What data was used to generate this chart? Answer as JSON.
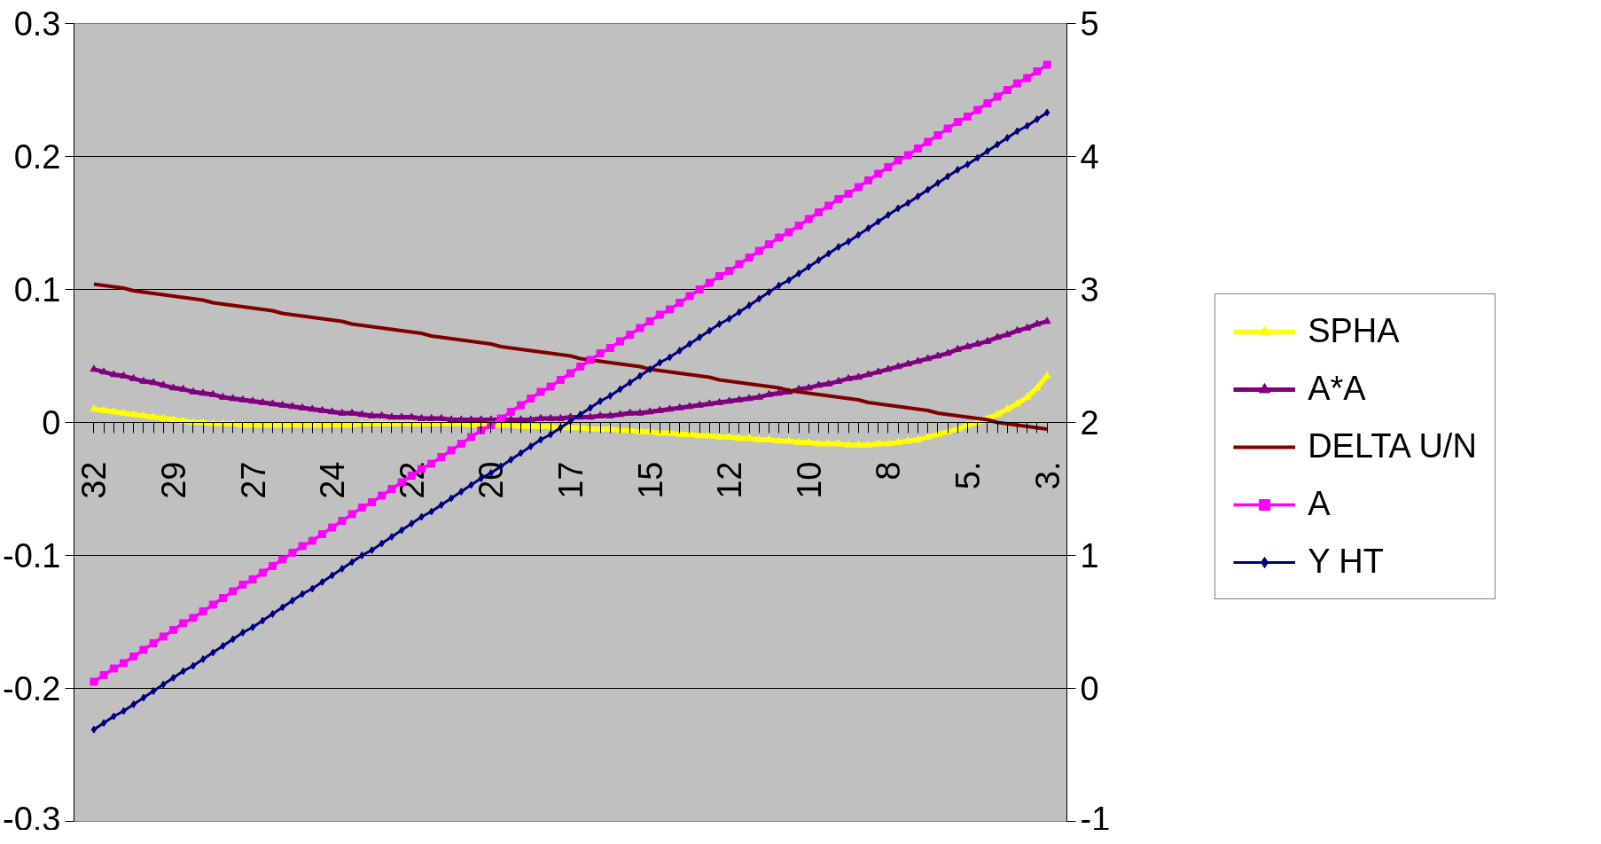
{
  "chart_data": {
    "type": "line",
    "categories": [
      "32",
      null,
      null,
      null,
      null,
      null,
      null,
      null,
      "29",
      null,
      null,
      null,
      null,
      null,
      null,
      null,
      "27",
      null,
      null,
      null,
      null,
      null,
      null,
      null,
      "24",
      null,
      null,
      null,
      null,
      null,
      null,
      null,
      "22",
      null,
      null,
      null,
      null,
      null,
      null,
      null,
      "20",
      null,
      null,
      null,
      null,
      null,
      null,
      null,
      "17",
      null,
      null,
      null,
      null,
      null,
      null,
      null,
      "15",
      null,
      null,
      null,
      null,
      null,
      null,
      null,
      "12",
      null,
      null,
      null,
      null,
      null,
      null,
      null,
      "10",
      null,
      null,
      null,
      null,
      null,
      null,
      null,
      "8",
      null,
      null,
      null,
      null,
      null,
      null,
      null,
      "5.",
      null,
      null,
      null,
      null,
      null,
      null,
      null,
      "3."
    ],
    "ylim": [
      -0.3,
      0.3
    ],
    "yticks": [
      -0.3,
      -0.2,
      -0.1,
      0,
      0.1,
      0.2,
      0.3
    ],
    "y2lim": [
      -1,
      5
    ],
    "y2ticks": [
      -1,
      0,
      1,
      2,
      3,
      4,
      5
    ],
    "grid": "y",
    "legend": "right",
    "line_style": "solid",
    "series": [
      {
        "name": "SPHA",
        "color": "#ffff00",
        "marker": "triangle",
        "values": [
          0.01,
          0.009,
          0.008,
          0.007,
          0.006,
          0.005,
          0.004,
          0.003,
          0.002,
          0.001,
          0.0,
          0.0,
          -0.001,
          -0.001,
          -0.001,
          -0.002,
          -0.002,
          -0.002,
          -0.002,
          -0.002,
          -0.002,
          -0.002,
          -0.002,
          -0.002,
          -0.002,
          -0.002,
          -0.002,
          -0.001,
          -0.001,
          -0.001,
          -0.001,
          -0.001,
          -0.001,
          -0.001,
          -0.001,
          -0.001,
          -0.001,
          -0.001,
          -0.002,
          -0.002,
          -0.002,
          -0.002,
          -0.002,
          -0.003,
          -0.003,
          -0.003,
          -0.003,
          -0.004,
          -0.004,
          -0.004,
          -0.005,
          -0.005,
          -0.005,
          -0.006,
          -0.006,
          -0.007,
          -0.007,
          -0.008,
          -0.008,
          -0.009,
          -0.009,
          -0.01,
          -0.01,
          -0.011,
          -0.011,
          -0.012,
          -0.012,
          -0.013,
          -0.013,
          -0.014,
          -0.014,
          -0.015,
          -0.015,
          -0.016,
          -0.016,
          -0.016,
          -0.017,
          -0.017,
          -0.017,
          -0.016,
          -0.016,
          -0.015,
          -0.014,
          -0.013,
          -0.011,
          -0.009,
          -0.007,
          -0.005,
          -0.002,
          0.0,
          0.003,
          0.006,
          0.01,
          0.014,
          0.019,
          0.026,
          0.035
        ]
      },
      {
        "name": "A*A",
        "color": "#800080",
        "marker": "triangle",
        "values": [
          0.04,
          0.038,
          0.036,
          0.035,
          0.033,
          0.031,
          0.03,
          0.028,
          0.026,
          0.025,
          0.023,
          0.022,
          0.021,
          0.019,
          0.018,
          0.017,
          0.016,
          0.015,
          0.014,
          0.013,
          0.012,
          0.011,
          0.01,
          0.009,
          0.008,
          0.007,
          0.007,
          0.006,
          0.005,
          0.005,
          0.004,
          0.004,
          0.004,
          0.003,
          0.003,
          0.003,
          0.002,
          0.002,
          0.002,
          0.002,
          0.002,
          0.002,
          0.002,
          0.002,
          0.002,
          0.003,
          0.003,
          0.003,
          0.004,
          0.004,
          0.004,
          0.005,
          0.005,
          0.006,
          0.007,
          0.007,
          0.008,
          0.009,
          0.01,
          0.011,
          0.012,
          0.013,
          0.014,
          0.015,
          0.016,
          0.017,
          0.018,
          0.019,
          0.021,
          0.022,
          0.023,
          0.025,
          0.026,
          0.028,
          0.029,
          0.031,
          0.033,
          0.034,
          0.036,
          0.038,
          0.04,
          0.042,
          0.044,
          0.046,
          0.048,
          0.05,
          0.052,
          0.055,
          0.057,
          0.059,
          0.061,
          0.064,
          0.066,
          0.069,
          0.071,
          0.074,
          0.076
        ]
      },
      {
        "name": "DELTA U/N",
        "color": "#800000",
        "values": [
          0.104,
          0.103,
          0.102,
          0.101,
          0.099,
          0.098,
          0.097,
          0.096,
          0.095,
          0.094,
          0.093,
          0.092,
          0.09,
          0.089,
          0.088,
          0.087,
          0.086,
          0.085,
          0.084,
          0.082,
          0.081,
          0.08,
          0.079,
          0.078,
          0.077,
          0.076,
          0.074,
          0.073,
          0.072,
          0.071,
          0.07,
          0.069,
          0.068,
          0.067,
          0.065,
          0.064,
          0.063,
          0.062,
          0.061,
          0.06,
          0.059,
          0.057,
          0.056,
          0.055,
          0.054,
          0.053,
          0.052,
          0.051,
          0.05,
          0.048,
          0.047,
          0.046,
          0.045,
          0.044,
          0.043,
          0.042,
          0.04,
          0.039,
          0.038,
          0.037,
          0.036,
          0.035,
          0.034,
          0.032,
          0.031,
          0.03,
          0.029,
          0.028,
          0.027,
          0.026,
          0.024,
          0.023,
          0.022,
          0.021,
          0.02,
          0.019,
          0.018,
          0.017,
          0.015,
          0.014,
          0.013,
          0.012,
          0.011,
          0.01,
          0.009,
          0.007,
          0.006,
          0.005,
          0.004,
          0.003,
          0.002,
          0.0,
          -0.001,
          -0.002,
          -0.003,
          -0.004,
          -0.005
        ]
      },
      {
        "name": "A",
        "color": "#ff00ff",
        "marker": "square",
        "axis": "y2",
        "values": [
          0.05,
          0.1,
          0.15,
          0.19,
          0.24,
          0.29,
          0.34,
          0.39,
          0.44,
          0.49,
          0.53,
          0.58,
          0.63,
          0.68,
          0.73,
          0.78,
          0.82,
          0.87,
          0.92,
          0.97,
          1.02,
          1.07,
          1.11,
          1.16,
          1.21,
          1.26,
          1.31,
          1.36,
          1.4,
          1.45,
          1.5,
          1.55,
          1.6,
          1.65,
          1.69,
          1.74,
          1.79,
          1.84,
          1.89,
          1.94,
          1.98,
          2.03,
          2.08,
          2.13,
          2.18,
          2.23,
          2.27,
          2.32,
          2.37,
          2.42,
          2.47,
          2.52,
          2.56,
          2.61,
          2.66,
          2.71,
          2.76,
          2.81,
          2.85,
          2.9,
          2.95,
          3.0,
          3.05,
          3.1,
          3.14,
          3.19,
          3.24,
          3.29,
          3.34,
          3.39,
          3.43,
          3.48,
          3.53,
          3.58,
          3.63,
          3.68,
          3.72,
          3.77,
          3.82,
          3.87,
          3.92,
          3.97,
          4.01,
          4.06,
          4.11,
          4.16,
          4.21,
          4.26,
          4.3,
          4.35,
          4.4,
          4.45,
          4.5,
          4.55,
          4.59,
          4.64,
          4.69
        ]
      },
      {
        "name": "Y HT",
        "color": "#000080",
        "marker": "diamond",
        "axis": "y2",
        "values": [
          -0.31,
          -0.26,
          -0.21,
          -0.17,
          -0.12,
          -0.07,
          -0.02,
          0.03,
          0.08,
          0.13,
          0.17,
          0.22,
          0.27,
          0.32,
          0.37,
          0.42,
          0.46,
          0.51,
          0.56,
          0.61,
          0.66,
          0.71,
          0.75,
          0.8,
          0.85,
          0.9,
          0.95,
          1.0,
          1.04,
          1.09,
          1.14,
          1.19,
          1.24,
          1.29,
          1.33,
          1.38,
          1.43,
          1.48,
          1.53,
          1.58,
          1.62,
          1.67,
          1.72,
          1.77,
          1.82,
          1.87,
          1.91,
          1.96,
          2.01,
          2.06,
          2.11,
          2.16,
          2.2,
          2.25,
          2.3,
          2.35,
          2.4,
          2.45,
          2.49,
          2.54,
          2.59,
          2.64,
          2.69,
          2.74,
          2.78,
          2.83,
          2.88,
          2.93,
          2.98,
          3.03,
          3.07,
          3.12,
          3.17,
          3.22,
          3.27,
          3.32,
          3.36,
          3.41,
          3.46,
          3.51,
          3.56,
          3.61,
          3.65,
          3.7,
          3.75,
          3.8,
          3.85,
          3.9,
          3.94,
          3.99,
          4.04,
          4.09,
          4.14,
          4.19,
          4.23,
          4.28,
          4.33
        ]
      }
    ]
  }
}
